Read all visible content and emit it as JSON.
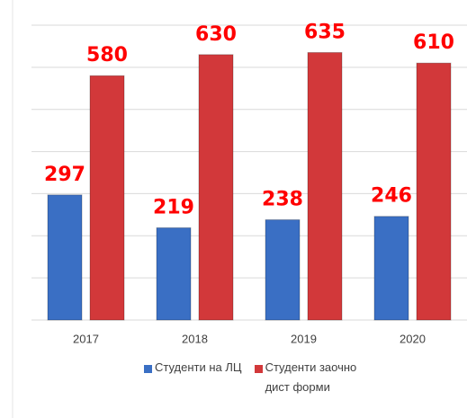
{
  "chart_data": {
    "type": "bar",
    "categories": [
      "2017",
      "2018",
      "2019",
      "2020"
    ],
    "series": [
      {
        "name": "Студенти на ЛЦ",
        "color": "#3a6fc4",
        "values": [
          297,
          219,
          238,
          246
        ]
      },
      {
        "name": "Студенти заочно дист форми",
        "color": "#d2383a",
        "values": [
          580,
          630,
          635,
          610
        ]
      }
    ],
    "ylim": [
      0,
      700
    ],
    "yticks": [
      0,
      100,
      200,
      300,
      400,
      500,
      600,
      700
    ],
    "grid": true
  }
}
